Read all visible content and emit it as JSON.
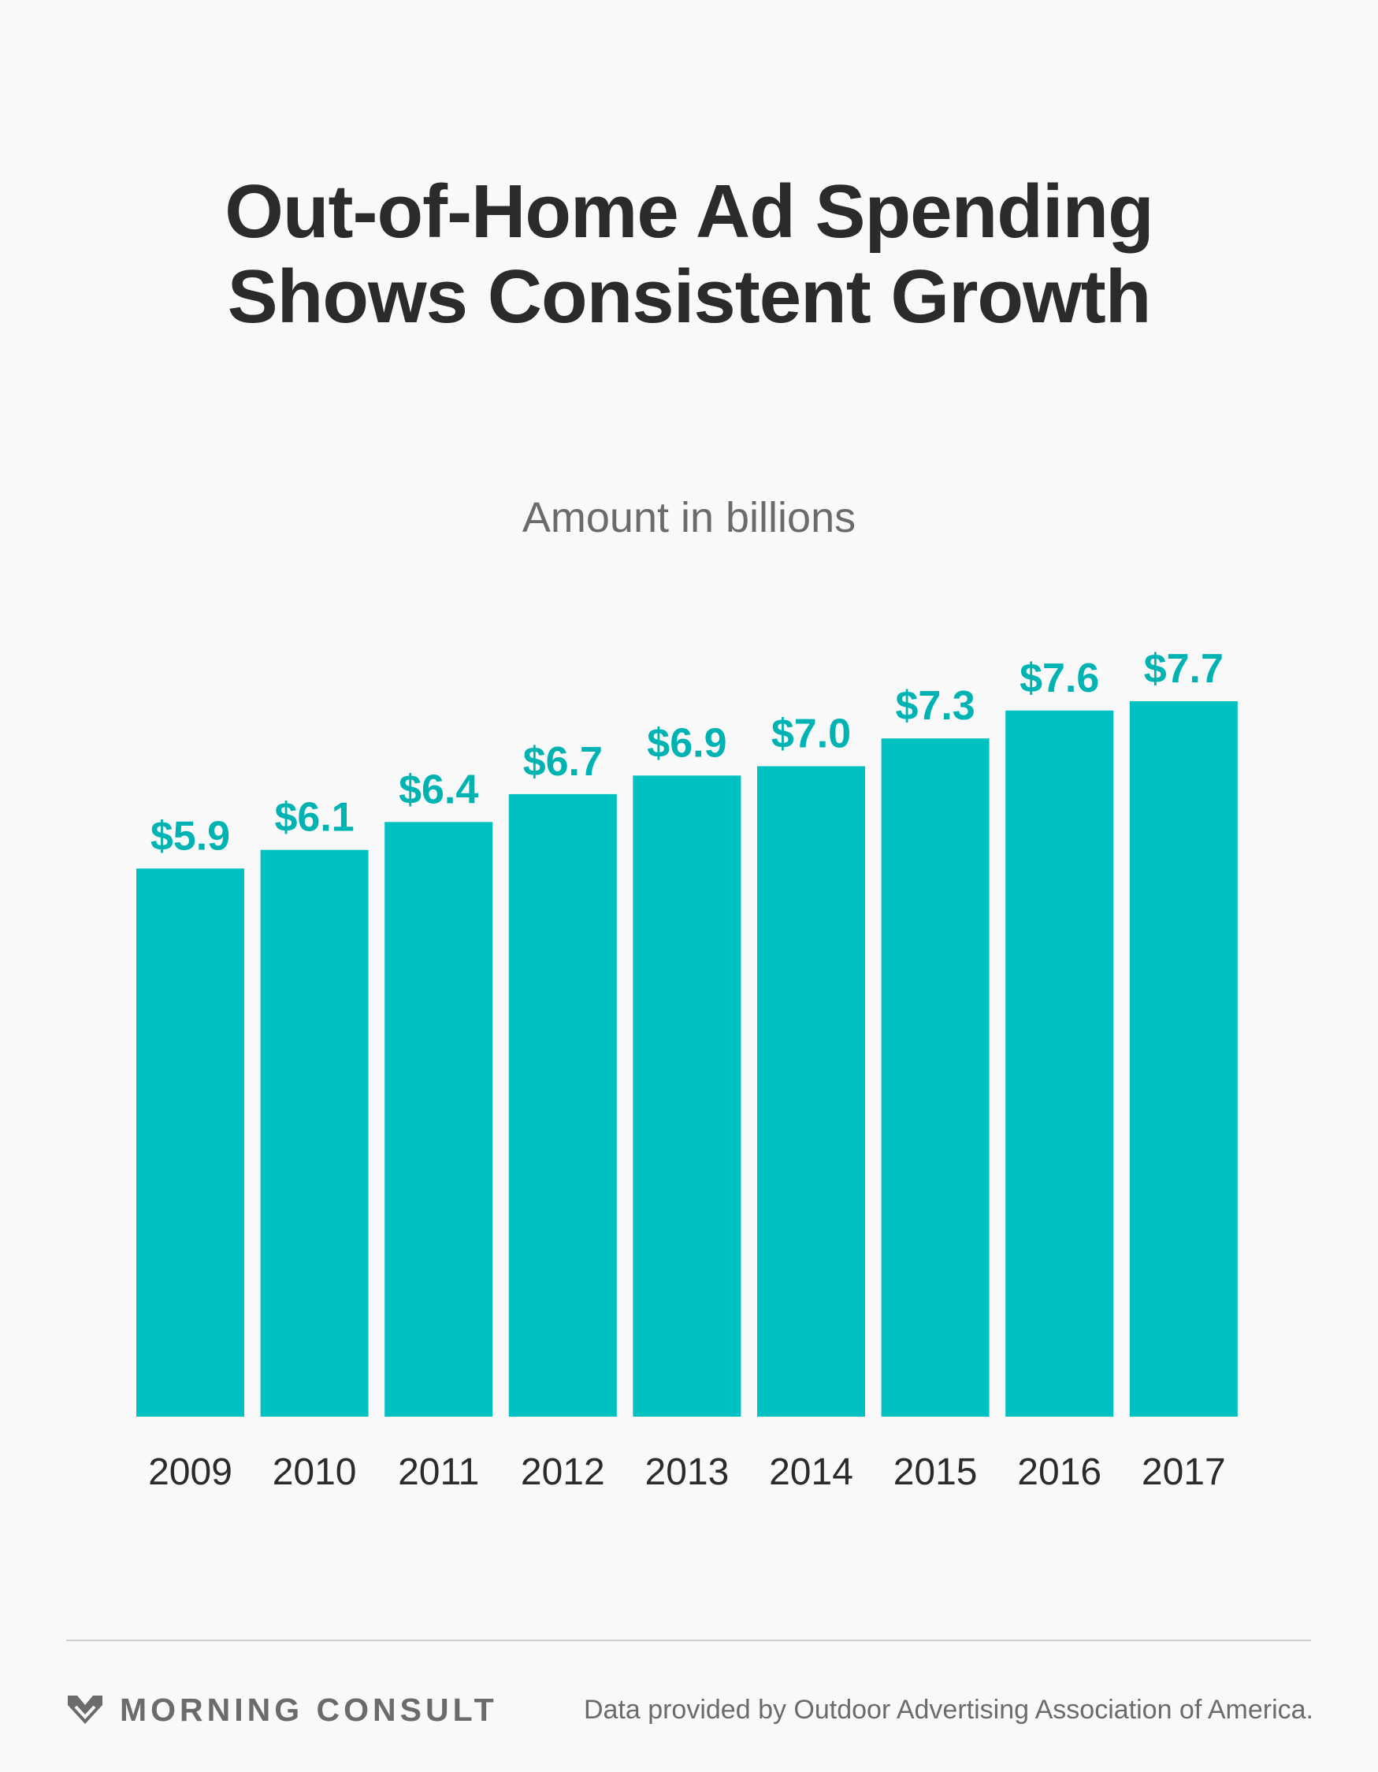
{
  "header": {
    "title_line1": "Out-of-Home Ad Spending",
    "title_line2": "Shows Consistent Growth",
    "subtitle": "Amount in billions"
  },
  "colors": {
    "bar": "#00c1c1",
    "value_label": "#00b3b3",
    "title": "#2b2b2b",
    "muted": "#6b6b6b",
    "background": "#f9f9f9"
  },
  "chart_data": {
    "type": "bar",
    "title": "Out-of-Home Ad Spending Shows Consistent Growth",
    "subtitle": "Amount in billions",
    "categories": [
      "2009",
      "2010",
      "2011",
      "2012",
      "2013",
      "2014",
      "2015",
      "2016",
      "2017"
    ],
    "values": [
      5.9,
      6.1,
      6.4,
      6.7,
      6.9,
      7.0,
      7.3,
      7.6,
      7.7
    ],
    "value_labels": [
      "$5.9",
      "$6.1",
      "$6.4",
      "$6.7",
      "$6.9",
      "$7.0",
      "$7.3",
      "$7.6",
      "$7.7"
    ],
    "ylim": [
      0,
      7.7
    ],
    "grid": false,
    "legend": "none"
  },
  "footer": {
    "brand": "MORNING CONSULT",
    "logo_icon": "morning-consult-chevron-icon",
    "source": "Data provided by Outdoor Advertising Association of America."
  }
}
